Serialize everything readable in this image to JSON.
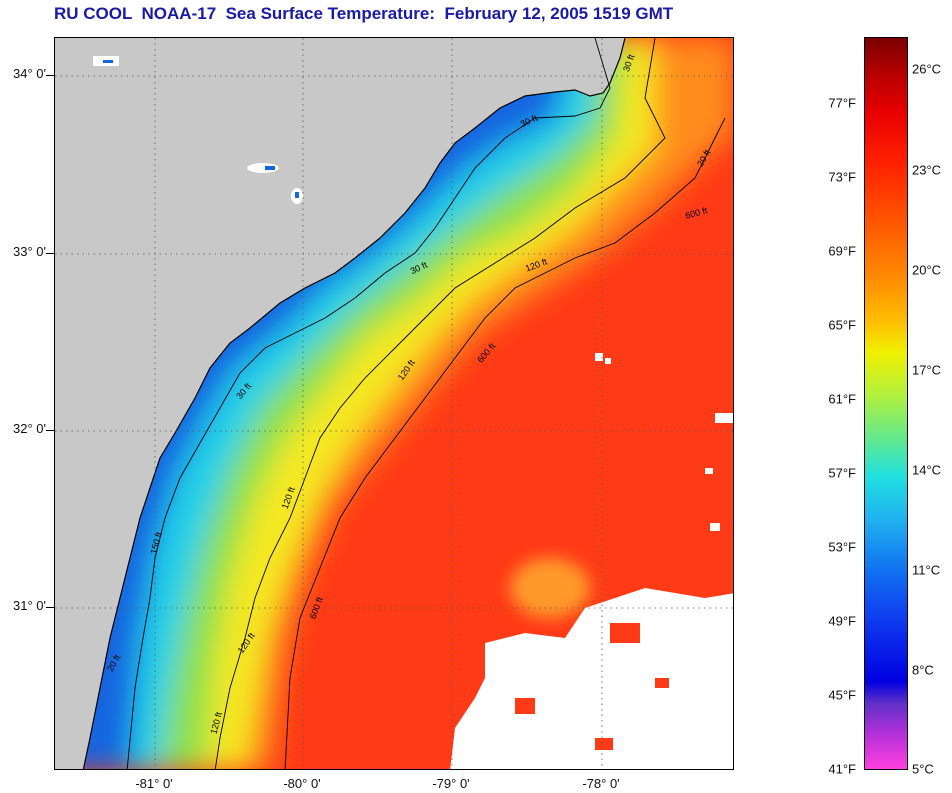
{
  "title": "RU COOL  NOAA-17  Sea Surface Temperature:  February 12, 2005 1519 GMT",
  "map": {
    "lat_labels": [
      "34° 0'",
      "33° 0'",
      "32° 0'",
      "31° 0'"
    ],
    "lon_labels": [
      "-81° 0'",
      "-80° 0'",
      "-79° 0'",
      "-78° 0'"
    ],
    "isobath_labels": [
      "30 ft",
      "30 ft",
      "30 ft",
      "120 ft",
      "120 ft",
      "120 ft",
      "120 ft",
      "120 ft",
      "600 ft",
      "600 ft",
      "600 ft",
      "150 ft",
      "30 ft",
      "20 ft",
      "20 ft"
    ],
    "colors": {
      "land": "#c8c8c8",
      "cloud": "#ffffff",
      "coast_cold": "#1565e0",
      "shelf_cyan": "#20d0e8",
      "shelf_green": "#8ce048",
      "shelf_yellow": "#f4e820",
      "slope_orange": "#ff8c1a",
      "gulfstream_red": "#ff3a16"
    }
  },
  "colorbar": {
    "fahrenheit_labels": [
      "77°F",
      "73°F",
      "69°F",
      "65°F",
      "61°F",
      "57°F",
      "53°F",
      "49°F",
      "45°F",
      "41°F"
    ],
    "celsius_labels": [
      "26°C",
      "23°C",
      "20°C",
      "17°C",
      "14°C",
      "11°C",
      "8°C",
      "5°C"
    ]
  }
}
